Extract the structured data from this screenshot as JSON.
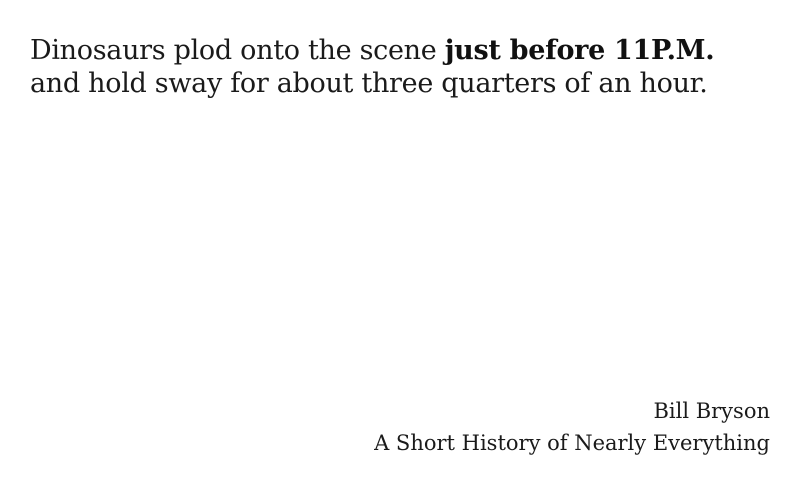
{
  "quote": {
    "before": "Dinosaurs plod onto the scene ",
    "emphasis": "just before 11P.M.",
    "after": " and hold sway for about three quarters of an hour."
  },
  "attribution": {
    "author": "Bill Bryson",
    "book": "A Short History of Nearly Everything"
  },
  "colors": {
    "background": "#ffffff",
    "text": "#1a1a1a"
  }
}
